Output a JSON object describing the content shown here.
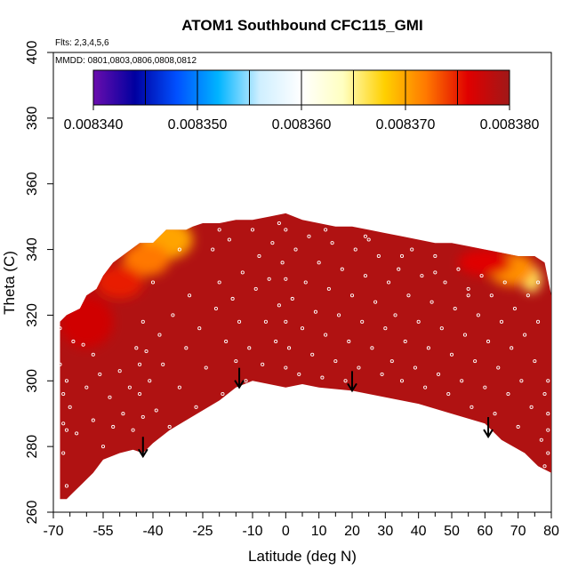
{
  "chart_data": {
    "type": "heatmap",
    "title": "ATOM1 Southbound CFC115_GMI",
    "notes": {
      "flights": "Flts: 2,3,4,5,6",
      "dates": "MMDD: 0801,0803,0806,0808,0812"
    },
    "xlabel": "Latitude (deg N)",
    "ylabel": "Theta (C)",
    "xlim": [
      -70,
      80
    ],
    "ylim": [
      260,
      400
    ],
    "x_ticks": [
      {
        "value": -70,
        "label": "-70"
      },
      {
        "value": -55,
        "label": "-55"
      },
      {
        "value": -40,
        "label": "-40"
      },
      {
        "value": -25,
        "label": "-25"
      },
      {
        "value": -10,
        "label": "-10"
      },
      {
        "value": 0,
        "label": "0"
      },
      {
        "value": 10,
        "label": "10"
      },
      {
        "value": 20,
        "label": "20"
      },
      {
        "value": 30,
        "label": "30"
      },
      {
        "value": 40,
        "label": "40"
      },
      {
        "value": 50,
        "label": "50"
      },
      {
        "value": 60,
        "label": "60"
      },
      {
        "value": 70,
        "label": "70"
      },
      {
        "value": 80,
        "label": "80"
      }
    ],
    "x_minor_ticks": [
      -65,
      -60,
      -50,
      -45,
      -35,
      -30,
      -20,
      -15,
      -5,
      5,
      15,
      25,
      35,
      45,
      55,
      65,
      75
    ],
    "y_ticks": [
      {
        "value": 260,
        "label": "260"
      },
      {
        "value": 280,
        "label": "280"
      },
      {
        "value": 300,
        "label": "300"
      },
      {
        "value": 320,
        "label": "320"
      },
      {
        "value": 340,
        "label": "340"
      },
      {
        "value": 360,
        "label": "360"
      },
      {
        "value": 380,
        "label": "380"
      },
      {
        "value": 400,
        "label": "400"
      }
    ],
    "colorbar": {
      "range": [
        0.00834,
        0.00838
      ],
      "ticks": [
        {
          "value": 0.00834,
          "label": "0.008340"
        },
        {
          "value": 0.00835,
          "label": "0.008350"
        },
        {
          "value": 0.00836,
          "label": "0.008360"
        },
        {
          "value": 0.00837,
          "label": "0.008370"
        },
        {
          "value": 0.00838,
          "label": "0.008380"
        }
      ],
      "stops": [
        "#6a0dad",
        "#0000a0",
        "#0050ff",
        "#00b4ff",
        "#cfefff",
        "#ffffff",
        "#ffffc0",
        "#ffd000",
        "#ff7800",
        "#e00000",
        "#a01818"
      ]
    },
    "field": {
      "background_value": 0.008379,
      "top_boundary": [
        [
          -68,
          318
        ],
        [
          -66,
          320
        ],
        [
          -62,
          322
        ],
        [
          -60,
          326
        ],
        [
          -57,
          328
        ],
        [
          -55,
          332
        ],
        [
          -52,
          336
        ],
        [
          -48,
          339
        ],
        [
          -44,
          342
        ],
        [
          -40,
          342
        ],
        [
          -36,
          346
        ],
        [
          -34,
          346
        ],
        [
          -30,
          346
        ],
        [
          -28,
          347
        ],
        [
          -25,
          348
        ],
        [
          -20,
          348
        ],
        [
          -15,
          349
        ],
        [
          -10,
          349
        ],
        [
          -5,
          350
        ],
        [
          0,
          351
        ],
        [
          5,
          349
        ],
        [
          10,
          348
        ],
        [
          15,
          347
        ],
        [
          20,
          347
        ],
        [
          25,
          346
        ],
        [
          30,
          345
        ],
        [
          35,
          344
        ],
        [
          40,
          343
        ],
        [
          45,
          342
        ],
        [
          50,
          342
        ],
        [
          55,
          341
        ],
        [
          60,
          340
        ],
        [
          65,
          339
        ],
        [
          70,
          338
        ],
        [
          75,
          338
        ],
        [
          78,
          336
        ],
        [
          80,
          326
        ]
      ],
      "bottom_boundary": [
        [
          80,
          272
        ],
        [
          76,
          274
        ],
        [
          72,
          278
        ],
        [
          65,
          282
        ],
        [
          60,
          287
        ],
        [
          50,
          290
        ],
        [
          40,
          293
        ],
        [
          30,
          295
        ],
        [
          20,
          297
        ],
        [
          10,
          298
        ],
        [
          5,
          299
        ],
        [
          0,
          298
        ],
        [
          -5,
          299
        ],
        [
          -10,
          300
        ],
        [
          -15,
          298
        ],
        [
          -20,
          294
        ],
        [
          -25,
          291
        ],
        [
          -30,
          288
        ],
        [
          -35,
          285
        ],
        [
          -40,
          281
        ],
        [
          -43,
          278
        ],
        [
          -46,
          279
        ],
        [
          -50,
          278
        ],
        [
          -55,
          276
        ],
        [
          -58,
          272
        ],
        [
          -62,
          268
        ],
        [
          -64,
          266
        ],
        [
          -66,
          264
        ],
        [
          -68,
          264
        ]
      ],
      "patches": [
        {
          "lat": -36,
          "theta": 343,
          "value": 0.00837,
          "rx": 8,
          "ry": 6
        },
        {
          "lat": -42,
          "theta": 337,
          "value": 0.008372,
          "rx": 7,
          "ry": 5
        },
        {
          "lat": -50,
          "theta": 330,
          "value": 0.008375,
          "rx": 7,
          "ry": 5
        },
        {
          "lat": -60,
          "theta": 318,
          "value": 0.008377,
          "rx": 8,
          "ry": 8
        },
        {
          "lat": 74,
          "theta": 331,
          "value": 0.008366,
          "rx": 3,
          "ry": 4
        },
        {
          "lat": 68,
          "theta": 334,
          "value": 0.008371,
          "rx": 7,
          "ry": 5
        },
        {
          "lat": 60,
          "theta": 336,
          "value": 0.008376,
          "rx": 8,
          "ry": 4
        }
      ]
    },
    "arrows": [
      {
        "lat": -43,
        "theta": 277
      },
      {
        "lat": -14,
        "theta": 298
      },
      {
        "lat": 20,
        "theta": 297
      },
      {
        "lat": 61,
        "theta": 283
      }
    ],
    "sample_points": [
      [
        -68,
        316
      ],
      [
        -68,
        305
      ],
      [
        -67,
        296
      ],
      [
        -67,
        287
      ],
      [
        -67,
        278
      ],
      [
        -66,
        268
      ],
      [
        -66,
        300
      ],
      [
        -65,
        292
      ],
      [
        -63,
        284
      ],
      [
        -61,
        311
      ],
      [
        -60,
        298
      ],
      [
        -58,
        288
      ],
      [
        -56,
        302
      ],
      [
        -55,
        280
      ],
      [
        -53,
        295
      ],
      [
        -52,
        286
      ],
      [
        -50,
        303
      ],
      [
        -49,
        290
      ],
      [
        -47,
        298
      ],
      [
        -46,
        285
      ],
      [
        -44,
        305
      ],
      [
        -44,
        296
      ],
      [
        -43,
        289
      ],
      [
        -43,
        318
      ],
      [
        -42,
        309
      ],
      [
        -41,
        300
      ],
      [
        -40,
        330
      ],
      [
        -39,
        291
      ],
      [
        -38,
        314
      ],
      [
        -37,
        305
      ],
      [
        -35,
        286
      ],
      [
        -34,
        320
      ],
      [
        -32,
        298
      ],
      [
        -30,
        310
      ],
      [
        -29,
        326
      ],
      [
        -27,
        292
      ],
      [
        -26,
        316
      ],
      [
        -24,
        304
      ],
      [
        -22,
        340
      ],
      [
        -21,
        322
      ],
      [
        -20,
        330
      ],
      [
        -19,
        296
      ],
      [
        -18,
        312
      ],
      [
        -17,
        343
      ],
      [
        -16,
        325
      ],
      [
        -15,
        306
      ],
      [
        -14,
        318
      ],
      [
        -13,
        333
      ],
      [
        -12,
        300
      ],
      [
        -11,
        310
      ],
      [
        -10,
        346
      ],
      [
        -9,
        328
      ],
      [
        -8,
        338
      ],
      [
        -7,
        305
      ],
      [
        -6,
        318
      ],
      [
        -5,
        331
      ],
      [
        -4,
        342
      ],
      [
        -3,
        312
      ],
      [
        -2,
        323
      ],
      [
        -1,
        336
      ],
      [
        0,
        304
      ],
      [
        0,
        318
      ],
      [
        0,
        331
      ],
      [
        0,
        346
      ],
      [
        1,
        310
      ],
      [
        2,
        325
      ],
      [
        3,
        340
      ],
      [
        4,
        302
      ],
      [
        5,
        316
      ],
      [
        6,
        330
      ],
      [
        7,
        344
      ],
      [
        8,
        308
      ],
      [
        9,
        321
      ],
      [
        10,
        336
      ],
      [
        11,
        301
      ],
      [
        12,
        314
      ],
      [
        13,
        328
      ],
      [
        14,
        342
      ],
      [
        15,
        306
      ],
      [
        16,
        320
      ],
      [
        17,
        334
      ],
      [
        18,
        300
      ],
      [
        19,
        312
      ],
      [
        20,
        326
      ],
      [
        21,
        340
      ],
      [
        22,
        304
      ],
      [
        23,
        318
      ],
      [
        24,
        332
      ],
      [
        25,
        343
      ],
      [
        26,
        310
      ],
      [
        27,
        324
      ],
      [
        28,
        338
      ],
      [
        29,
        302
      ],
      [
        30,
        316
      ],
      [
        31,
        330
      ],
      [
        32,
        306
      ],
      [
        33,
        320
      ],
      [
        34,
        334
      ],
      [
        35,
        300
      ],
      [
        36,
        312
      ],
      [
        37,
        326
      ],
      [
        38,
        340
      ],
      [
        39,
        304
      ],
      [
        40,
        318
      ],
      [
        41,
        332
      ],
      [
        42,
        298
      ],
      [
        43,
        310
      ],
      [
        44,
        324
      ],
      [
        45,
        338
      ],
      [
        46,
        302
      ],
      [
        47,
        316
      ],
      [
        48,
        330
      ],
      [
        49,
        296
      ],
      [
        50,
        308
      ],
      [
        51,
        322
      ],
      [
        52,
        334
      ],
      [
        53,
        300
      ],
      [
        54,
        314
      ],
      [
        55,
        328
      ],
      [
        56,
        292
      ],
      [
        57,
        306
      ],
      [
        58,
        320
      ],
      [
        59,
        332
      ],
      [
        60,
        298
      ],
      [
        61,
        312
      ],
      [
        62,
        326
      ],
      [
        63,
        290
      ],
      [
        64,
        304
      ],
      [
        65,
        318
      ],
      [
        66,
        330
      ],
      [
        67,
        296
      ],
      [
        68,
        310
      ],
      [
        69,
        322
      ],
      [
        70,
        286
      ],
      [
        71,
        300
      ],
      [
        72,
        314
      ],
      [
        73,
        326
      ],
      [
        74,
        292
      ],
      [
        75,
        306
      ],
      [
        76,
        318
      ],
      [
        77,
        282
      ],
      [
        78,
        296
      ],
      [
        79,
        278
      ],
      [
        79,
        290
      ],
      [
        79,
        300
      ],
      [
        79,
        285
      ],
      [
        78,
        274
      ],
      [
        76,
        330
      ],
      [
        55,
        326
      ],
      [
        45,
        333
      ],
      [
        35,
        338
      ],
      [
        24,
        344
      ],
      [
        12,
        346
      ],
      [
        -2,
        348
      ],
      [
        -20,
        346
      ],
      [
        -32,
        340
      ],
      [
        -45,
        310
      ],
      [
        -58,
        308
      ],
      [
        -64,
        312
      ],
      [
        -66,
        285
      ]
    ]
  }
}
